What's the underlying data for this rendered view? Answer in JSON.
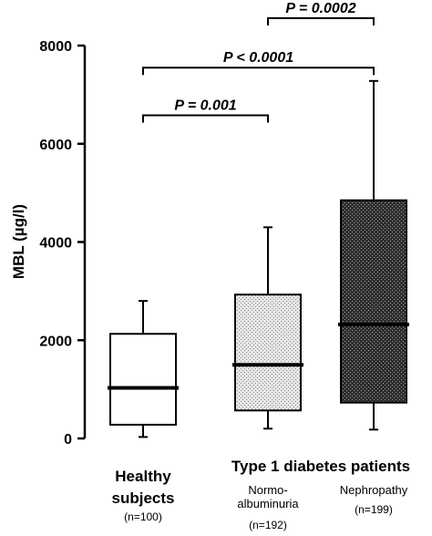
{
  "chart_data": {
    "type": "box",
    "ylabel": "MBL (µg/l)",
    "ylim": [
      0,
      8000
    ],
    "yticks": [
      0,
      2000,
      4000,
      6000,
      8000
    ],
    "group_title": "Type 1 diabetes patients",
    "categories": [
      {
        "name_lines": [
          "Healthy",
          "subjects"
        ],
        "n": "(n=100)",
        "style": "bold",
        "fill": "white"
      },
      {
        "name_lines": [
          "Normo-",
          "albuminuria"
        ],
        "n": "(n=192)",
        "style": "normal",
        "fill": "light-pattern"
      },
      {
        "name_lines": [
          "Nephropathy"
        ],
        "n": "(n=199)",
        "style": "normal",
        "fill": "dark-pattern"
      }
    ],
    "boxes": [
      {
        "whisker_low": 30,
        "q1": 280,
        "median": 1030,
        "q3": 2130,
        "whisker_high": 2800
      },
      {
        "whisker_low": 200,
        "q1": 570,
        "median": 1500,
        "q3": 2930,
        "whisker_high": 4300
      },
      {
        "whisker_low": 180,
        "q1": 730,
        "median": 2320,
        "q3": 4850,
        "whisker_high": 7280
      }
    ],
    "comparisons": [
      {
        "from": 0,
        "to": 1,
        "label": "P = 0.001",
        "bracket_y": 6580
      },
      {
        "from": 0,
        "to": 2,
        "label": "P < 0.0001",
        "bracket_y": 7550
      },
      {
        "from": 1,
        "to": 2,
        "label": "P = 0.0002",
        "bracket_y": 8560
      }
    ],
    "colors": {
      "stroke": "#000000",
      "light_fill": "#bfbfbf",
      "dark_fill": "#3a3a3a",
      "background": "#ffffff"
    }
  }
}
